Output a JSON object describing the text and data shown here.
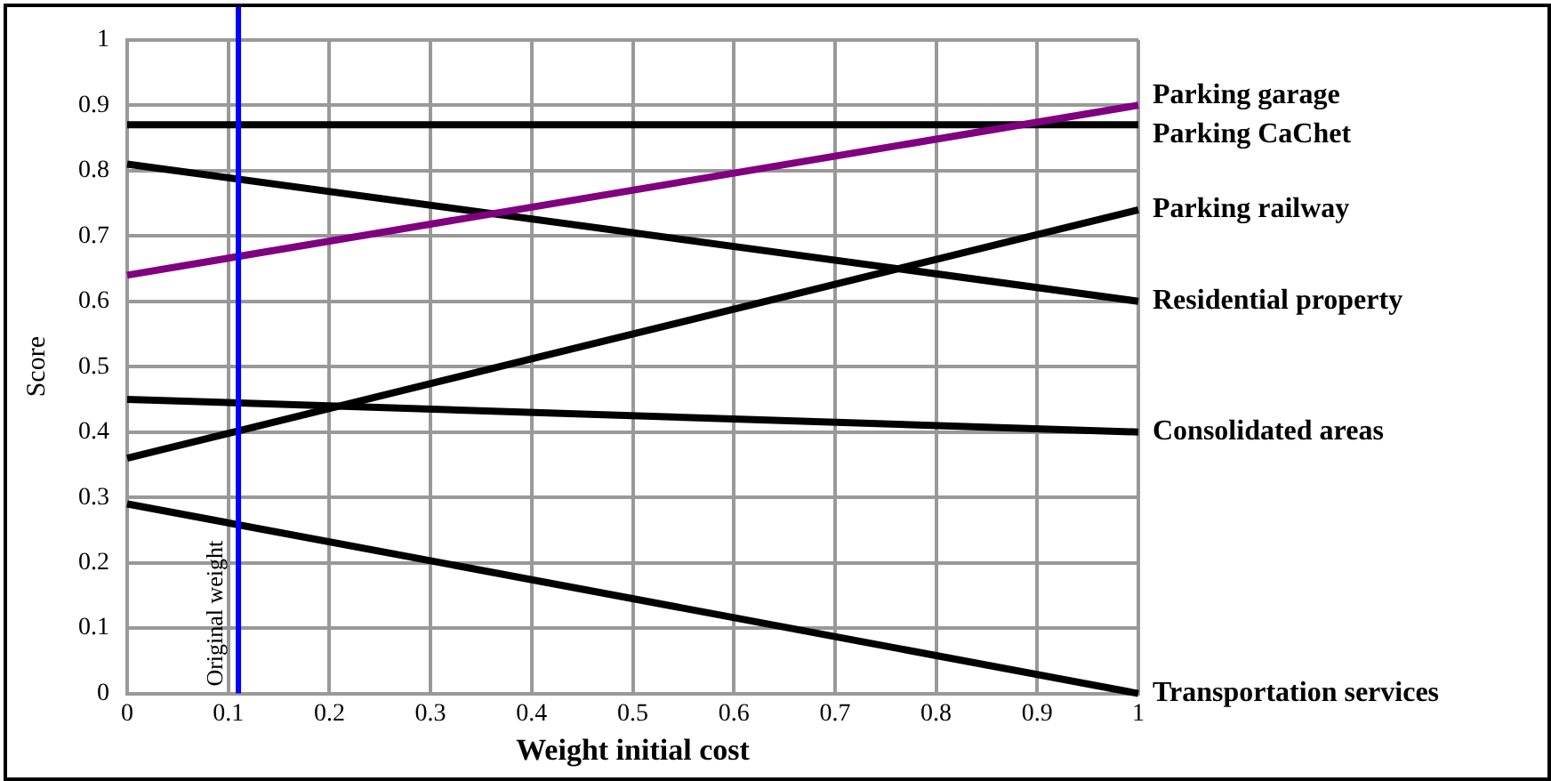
{
  "chart_data": {
    "type": "line",
    "xlabel": "Weight initial cost",
    "ylabel": "Score",
    "x": [
      0,
      1
    ],
    "xlim": [
      0,
      1
    ],
    "xticks": [
      0,
      0.1,
      0.2,
      0.3,
      0.4,
      0.5,
      0.6,
      0.7,
      0.8,
      0.9,
      1
    ],
    "ylim": [
      0,
      1
    ],
    "yticks": [
      0,
      0.1,
      0.2,
      0.3,
      0.4,
      0.5,
      0.6,
      0.7,
      0.8,
      0.9,
      1
    ],
    "grid": true,
    "legend": false,
    "marker": "none",
    "line_style": "solid",
    "series": [
      {
        "name": "Parking garage",
        "color": "#800080",
        "values": [
          0.64,
          0.9
        ]
      },
      {
        "name": "Parking CaChet",
        "color": "#000000",
        "values": [
          0.87,
          0.87
        ]
      },
      {
        "name": "Parking railway",
        "color": "#000000",
        "values": [
          0.36,
          0.74
        ]
      },
      {
        "name": "Residential property",
        "color": "#000000",
        "values": [
          0.81,
          0.6
        ]
      },
      {
        "name": "Consolidated areas",
        "color": "#000000",
        "values": [
          0.45,
          0.4
        ]
      },
      {
        "name": "Transportation services",
        "color": "#000000",
        "values": [
          0.29,
          0
        ]
      }
    ],
    "ref_lines": [
      {
        "axis": "x",
        "value": 0.11,
        "label": "Original weight",
        "color": "#0000ff"
      }
    ]
  }
}
